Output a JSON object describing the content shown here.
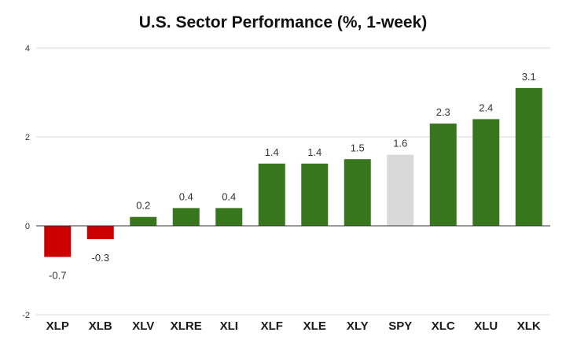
{
  "chart_data": {
    "type": "bar",
    "title": "U.S. Sector Performance (%, 1-week)",
    "xlabel": "",
    "ylabel": "",
    "ylim": [
      -2,
      4
    ],
    "yticks": [
      -2,
      0,
      2,
      4
    ],
    "grid": true,
    "legend": "none",
    "categories": [
      "XLP",
      "XLB",
      "XLV",
      "XLRE",
      "XLI",
      "XLF",
      "XLE",
      "XLY",
      "SPY",
      "XLC",
      "XLU",
      "XLK"
    ],
    "values": [
      -0.7,
      -0.3,
      0.2,
      0.4,
      0.4,
      1.4,
      1.4,
      1.5,
      1.6,
      2.3,
      2.4,
      3.1
    ],
    "data_labels": [
      "-0.7",
      "-0.3",
      "0.2",
      "0.4",
      "0.4",
      "1.4",
      "1.4",
      "1.5",
      "1.6",
      "2.3",
      "2.4",
      "3.1"
    ],
    "colors": {
      "negative": "#cc0000",
      "positive": "#38761d",
      "benchmark": "#d9d9d9"
    },
    "benchmark_category": "SPY"
  }
}
